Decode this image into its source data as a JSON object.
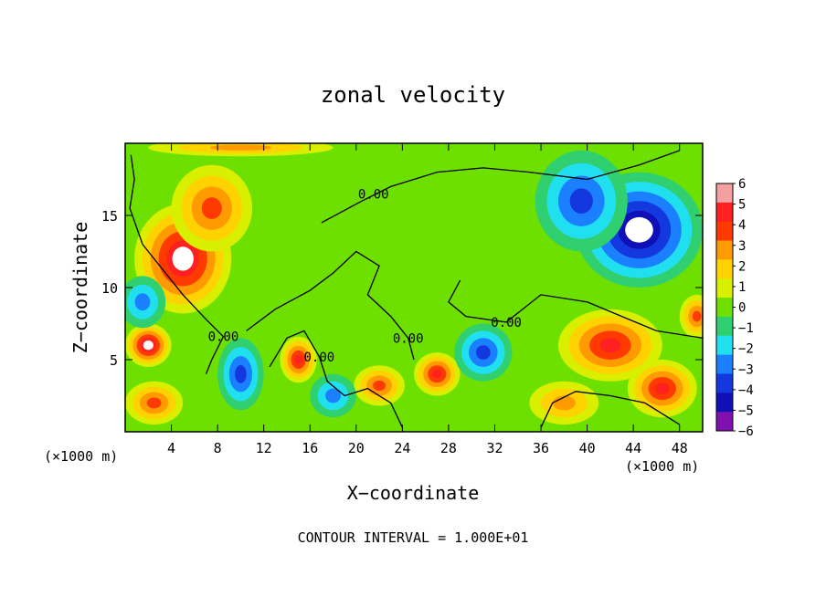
{
  "chart_data": {
    "type": "heatmap",
    "title": "zonal velocity",
    "xlabel": "X−coordinate",
    "ylabel": "Z−coordinate",
    "x_unit_left": "(×1000 m)",
    "x_unit_right": "(×1000 m)",
    "footer": "CONTOUR INTERVAL = 1.000E+01",
    "xlim": [
      0,
      50
    ],
    "ylim": [
      0,
      20
    ],
    "x_ticks": [
      4,
      8,
      12,
      16,
      20,
      24,
      28,
      32,
      36,
      40,
      44,
      48
    ],
    "x_tick_labels": [
      "4",
      "8",
      "12",
      "16",
      "20",
      "24",
      "28",
      "32",
      "36",
      "40",
      "44",
      "48"
    ],
    "y_ticks": [
      5,
      10,
      15
    ],
    "y_tick_labels": [
      "5",
      "10",
      "15"
    ],
    "colorbar": {
      "labels": [
        "6",
        "5",
        "4",
        "3",
        "2",
        "1",
        "0",
        "−1",
        "−2",
        "−3",
        "−4",
        "−5",
        "−6"
      ],
      "values": [
        6,
        5,
        4,
        3,
        2,
        1,
        0,
        -1,
        -2,
        -3,
        -4,
        -5,
        -6
      ],
      "colors": [
        "#f4a0a0",
        "#ff2020",
        "#ff3a00",
        "#ff9a00",
        "#ffd200",
        "#d8f000",
        "#6ee000",
        "#30d070",
        "#20e0f0",
        "#1a80ff",
        "#1438e0",
        "#1010b8",
        "#8010b0"
      ]
    },
    "contour_labels": [
      {
        "text": "0.00",
        "x": 21.5,
        "y": 16.5
      },
      {
        "text": "0.00",
        "x": 8.5,
        "y": 6.6
      },
      {
        "text": "0.00",
        "x": 16.8,
        "y": 5.2
      },
      {
        "text": "0.00",
        "x": 24.5,
        "y": 6.5
      },
      {
        "text": "0.00",
        "x": 33.0,
        "y": 7.6
      }
    ],
    "features": [
      {
        "kind": "max",
        "value": 5.5,
        "x": 5.0,
        "y": 12.0,
        "rx": 4.2,
        "ry": 3.8
      },
      {
        "kind": "max",
        "value": 3.5,
        "x": 7.5,
        "y": 15.5,
        "rx": 3.5,
        "ry": 3.0
      },
      {
        "kind": "min",
        "value": -5.5,
        "x": 44.5,
        "y": 14.0,
        "rx": 5.5,
        "ry": 4.0
      },
      {
        "kind": "min",
        "value": -3.5,
        "x": 39.5,
        "y": 16.0,
        "rx": 4.0,
        "ry": 3.5
      },
      {
        "kind": "max",
        "value": 4.5,
        "x": 42.0,
        "y": 6.0,
        "rx": 4.5,
        "ry": 2.5
      },
      {
        "kind": "max",
        "value": 5.0,
        "x": 46.5,
        "y": 3.0,
        "rx": 3.0,
        "ry": 2.0
      },
      {
        "kind": "max",
        "value": 5.0,
        "x": 15.0,
        "y": 5.0,
        "rx": 1.6,
        "ry": 1.6
      },
      {
        "kind": "max",
        "value": 5.0,
        "x": 27.0,
        "y": 4.0,
        "rx": 2.0,
        "ry": 1.5
      },
      {
        "kind": "max",
        "value": 4.0,
        "x": 22.0,
        "y": 3.2,
        "rx": 2.2,
        "ry": 1.4
      },
      {
        "kind": "min",
        "value": -3.5,
        "x": 10.0,
        "y": 4.0,
        "rx": 2.0,
        "ry": 2.5
      },
      {
        "kind": "min",
        "value": -3.0,
        "x": 18.0,
        "y": 2.5,
        "rx": 2.0,
        "ry": 1.5
      },
      {
        "kind": "min",
        "value": -4.0,
        "x": 31.0,
        "y": 5.5,
        "rx": 2.5,
        "ry": 2.0
      },
      {
        "kind": "max",
        "value": 5.5,
        "x": 2.0,
        "y": 6.0,
        "rx": 2.0,
        "ry": 1.5
      },
      {
        "kind": "max",
        "value": 4.0,
        "x": 2.5,
        "y": 2.0,
        "rx": 2.5,
        "ry": 1.5
      },
      {
        "kind": "max",
        "value": 3.0,
        "x": 38.0,
        "y": 2.0,
        "rx": 3.0,
        "ry": 1.5
      },
      {
        "kind": "max",
        "value": 3.0,
        "x": 10.0,
        "y": 19.7,
        "rx": 8.0,
        "ry": 0.6
      },
      {
        "kind": "min",
        "value": -2.5,
        "x": 1.5,
        "y": 9.0,
        "rx": 2.0,
        "ry": 1.8
      },
      {
        "kind": "max",
        "value": 4.0,
        "x": 49.5,
        "y": 8.0,
        "rx": 1.5,
        "ry": 1.5
      }
    ],
    "grid": false
  }
}
